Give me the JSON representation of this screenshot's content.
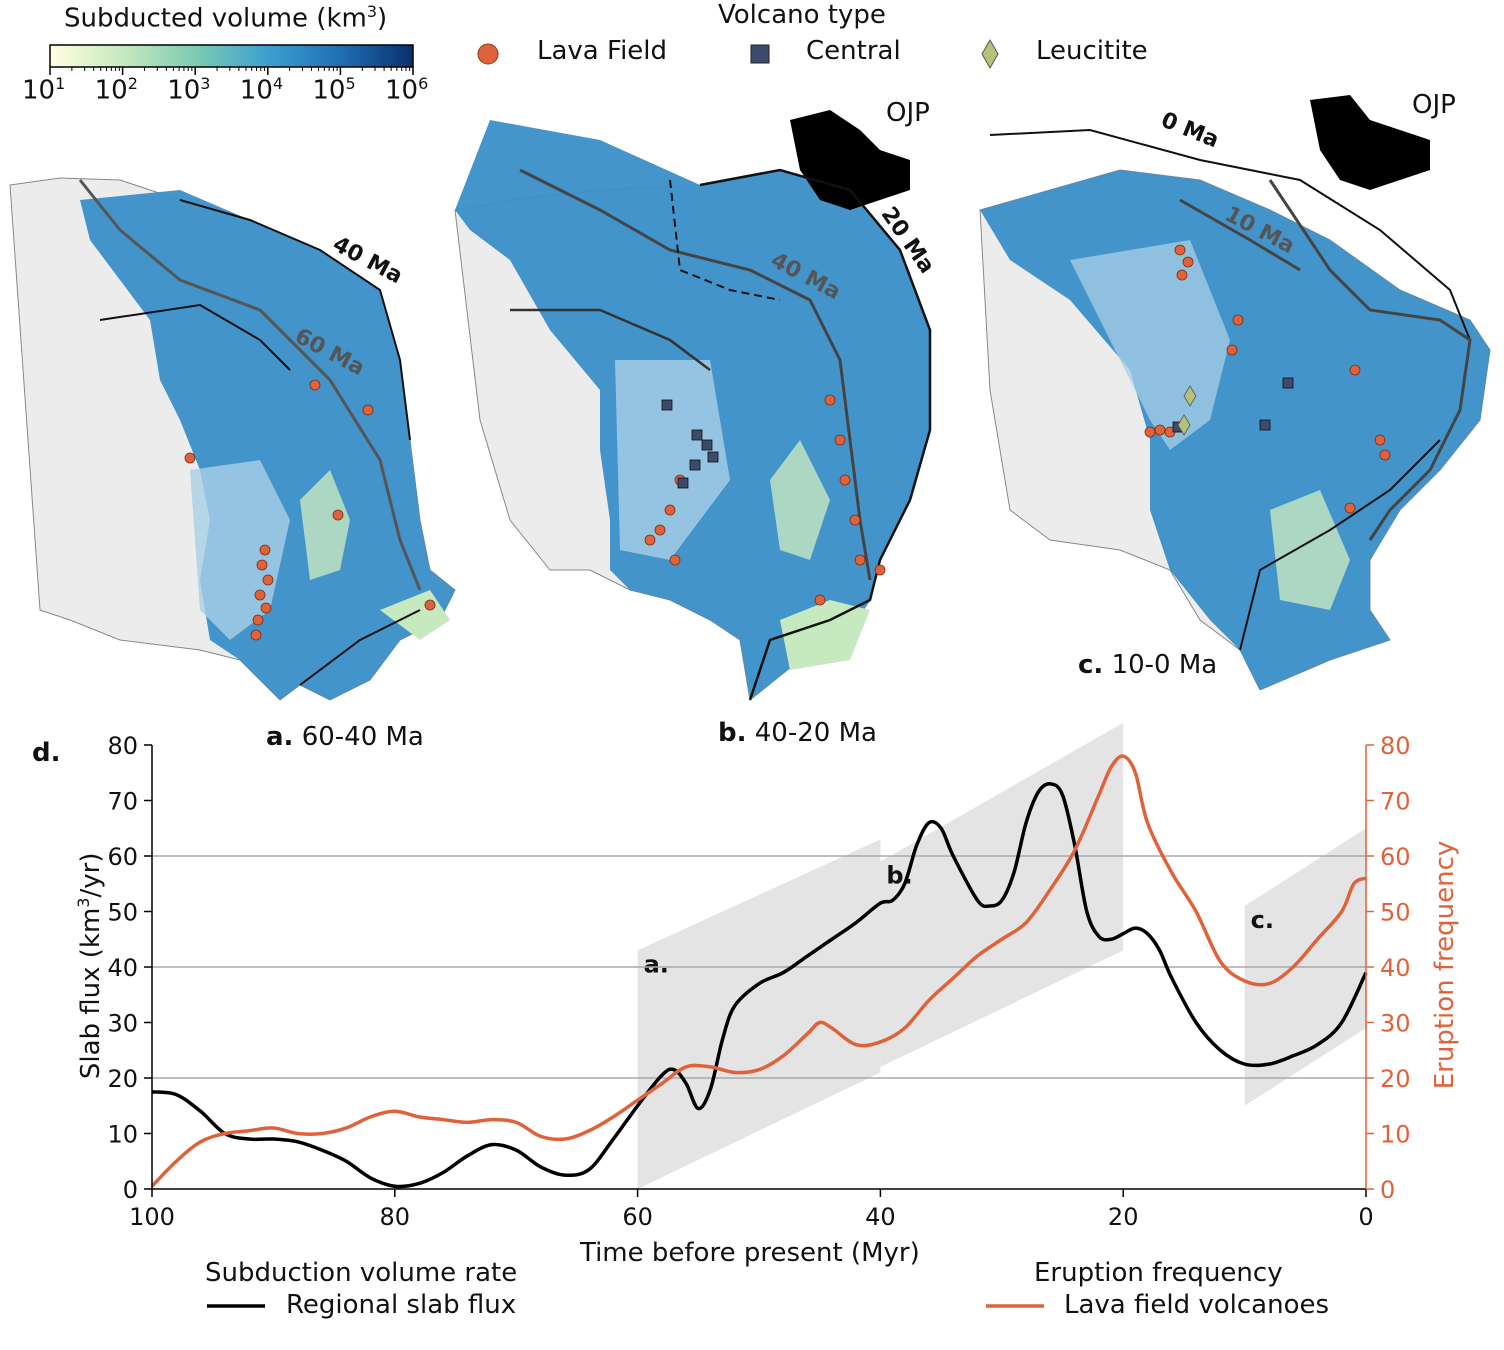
{
  "colorbar": {
    "title": "Subducted volume (km3)",
    "title_text": "Subducted volume (km",
    "title_sup": "3",
    "title_end": ")",
    "ticks": [
      {
        "base": "10",
        "exp": "1"
      },
      {
        "base": "10",
        "exp": "2"
      },
      {
        "base": "10",
        "exp": "3"
      },
      {
        "base": "10",
        "exp": "4"
      },
      {
        "base": "10",
        "exp": "5"
      },
      {
        "base": "10",
        "exp": "6"
      }
    ],
    "colors": [
      "#ffffe0",
      "#c7e9c0",
      "#7ccbb4",
      "#3d9fd0",
      "#1f6fb3",
      "#08306b"
    ]
  },
  "legend_top": {
    "title": "Volcano type",
    "items": [
      {
        "label": "Lava Field",
        "marker": "circle",
        "color": "#e0623a"
      },
      {
        "label": "Central",
        "marker": "square",
        "color": "#3c4a6b"
      },
      {
        "label": "Leucitite",
        "marker": "diamond",
        "color": "#b5c27a"
      }
    ]
  },
  "maps": [
    {
      "panel": "a.",
      "label": "60-40 Ma",
      "annotations": [
        "40 Ma",
        "60 Ma"
      ]
    },
    {
      "panel": "b.",
      "label": "40-20 Ma",
      "annotations": [
        "OJP",
        "20 Ma",
        "40 Ma"
      ]
    },
    {
      "panel": "c.",
      "label": "10-0 Ma",
      "annotations": [
        "OJP",
        "0 Ma",
        "10 Ma"
      ]
    }
  ],
  "chart_data": {
    "type": "line",
    "panel": "d.",
    "xlabel": "Time before present (Myr)",
    "ylabel_left_text": "Slab flux (km",
    "ylabel_left_sup": "3",
    "ylabel_left_end": "/yr)",
    "ylabel_right": "Eruption frequency",
    "xlim": [
      100,
      0
    ],
    "ylim": [
      0,
      80
    ],
    "xticks": [
      100,
      80,
      60,
      40,
      20,
      0
    ],
    "yticks": [
      0,
      10,
      20,
      30,
      40,
      50,
      60,
      70,
      80
    ],
    "gridlines_y": [
      20,
      40,
      60
    ],
    "series": [
      {
        "name": "Regional slab flux",
        "color": "#000000",
        "x": [
          100,
          98,
          96,
          94,
          92,
          90,
          88,
          86,
          84,
          82,
          80,
          78,
          76,
          74,
          72,
          70,
          68,
          66,
          64,
          62,
          60,
          58,
          57,
          56,
          55,
          54,
          53,
          52,
          50,
          48,
          46,
          44,
          42,
          40,
          39,
          38,
          37,
          36,
          35,
          34,
          32,
          31,
          30,
          29,
          28,
          27,
          26,
          25,
          24,
          23,
          22,
          21,
          20,
          19,
          18,
          17,
          16,
          14,
          12,
          10,
          8,
          6,
          4,
          2,
          0
        ],
        "y": [
          17.5,
          17,
          14,
          10,
          9,
          9,
          8.5,
          7,
          5,
          2,
          0.5,
          1,
          3,
          6,
          8,
          7,
          4,
          2.5,
          3.5,
          9,
          15,
          20.5,
          21.5,
          19,
          14.5,
          18,
          27,
          33,
          37,
          39,
          42,
          45,
          48,
          51.5,
          52,
          55,
          62,
          66,
          65,
          60,
          52,
          51,
          52,
          57,
          66,
          71.5,
          73,
          71,
          62,
          50,
          45.5,
          45,
          46,
          47,
          46,
          43,
          38,
          30,
          25,
          22.5,
          22.5,
          24,
          26,
          30,
          39
        ]
      },
      {
        "name": "Lava field volcanoes",
        "color": "#e0623a",
        "x": [
          100,
          98,
          96,
          94,
          92,
          90,
          88,
          86,
          84,
          82,
          80,
          78,
          76,
          74,
          72,
          70,
          68,
          66,
          64,
          62,
          60,
          58,
          56,
          54,
          52,
          50,
          48,
          46,
          45,
          44,
          42,
          40,
          38,
          36,
          34,
          32,
          30,
          28,
          26,
          24,
          22,
          21,
          20,
          19,
          18,
          16,
          14,
          12,
          10,
          8,
          6,
          4,
          2,
          1,
          0
        ],
        "y": [
          0.5,
          5,
          8.5,
          10,
          10.5,
          11,
          10,
          10,
          11,
          13,
          14,
          13,
          12.5,
          12,
          12.5,
          12,
          9.5,
          9,
          10.5,
          13,
          16,
          19,
          22,
          22,
          21,
          21.5,
          24,
          28,
          30,
          29,
          26,
          26.5,
          29,
          34,
          38,
          42,
          45,
          48,
          54,
          61,
          71,
          76,
          78,
          75,
          66,
          57,
          50,
          41,
          37.5,
          37,
          40,
          45,
          50,
          55,
          56
        ]
      }
    ],
    "shaded_windows": [
      {
        "label": "a.",
        "x_start": 60,
        "x_end": 40,
        "y_bottom_start": 0,
        "y_bottom_end": 21,
        "y_top_start": 43,
        "y_top_end": 63
      },
      {
        "label": "b.",
        "x_start": 40,
        "x_end": 20,
        "y_bottom_start": 22,
        "y_bottom_end": 43,
        "y_top_start": 59,
        "y_top_end": 84
      },
      {
        "label": "c.",
        "x_start": 10,
        "x_end": 0,
        "y_bottom_start": 15,
        "y_bottom_end": 29,
        "y_top_start": 51,
        "y_top_end": 65
      }
    ],
    "legend": [
      {
        "title": "Subduction volume rate",
        "label": "Regional slab flux",
        "color": "#000000"
      },
      {
        "title": "Eruption frequency",
        "label": "Lava field volcanoes",
        "color": "#e0623a"
      }
    ]
  }
}
